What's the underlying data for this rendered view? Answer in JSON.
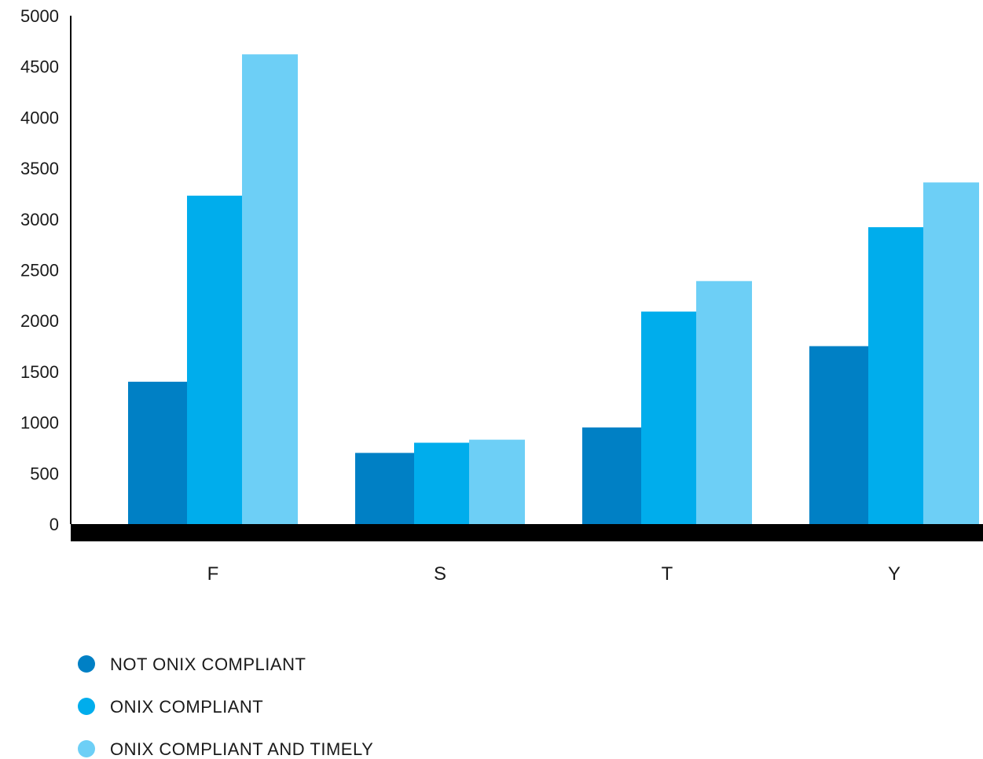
{
  "chart_data": {
    "type": "bar",
    "categories": [
      "F",
      "S",
      "T",
      "Y"
    ],
    "series": [
      {
        "name": "NOT ONIX COMPLIANT",
        "color": "#0080C5",
        "values": [
          1400,
          700,
          950,
          1750
        ]
      },
      {
        "name": "ONIX COMPLIANT",
        "color": "#00ADEC",
        "values": [
          3230,
          800,
          2090,
          2920
        ]
      },
      {
        "name": "ONIX COMPLIANT AND TIMELY",
        "color": "#6DCFF6",
        "values": [
          4620,
          830,
          2390,
          3360
        ]
      }
    ],
    "ylim": [
      0,
      5000
    ],
    "yticks": [
      "0",
      "500",
      "1000",
      "1500",
      "2000",
      "2500",
      "3000",
      "3500",
      "4000",
      "4500",
      "5000"
    ],
    "grid": false,
    "legend_position": "bottom-left",
    "baseline_color": "#000000"
  }
}
